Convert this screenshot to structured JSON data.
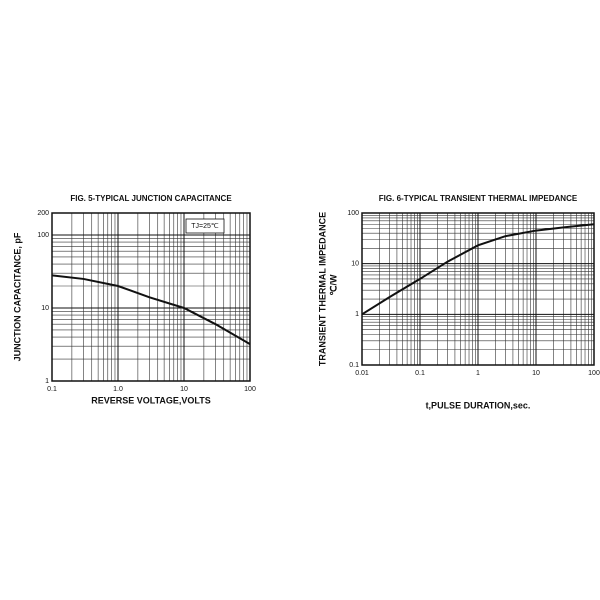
{
  "chart_data": [
    {
      "type": "line",
      "title": "FIG. 5-TYPICAL JUNCTION CAPACITANCE",
      "x_label": "REVERSE VOLTAGE,VOLTS",
      "y_label": [
        "JUNCTION CAPACITANCE, pF"
      ],
      "annotation": "TJ=25℃",
      "log_x": true,
      "log_y": true,
      "grid": true,
      "minor_grid": true,
      "xlim": [
        0.1,
        100
      ],
      "ylim": [
        1,
        200
      ],
      "xticks": [
        0.1,
        {
          "value": 1,
          "label": "1.0"
        },
        10,
        100
      ],
      "yticks": [
        1,
        10,
        100,
        200
      ],
      "x": [
        0.1,
        0.3,
        1,
        3,
        10,
        30,
        100
      ],
      "series": [
        {
          "color": "#111111",
          "values": [
            28,
            25,
            20,
            14,
            10,
            6,
            3.2
          ]
        }
      ]
    },
    {
      "type": "line",
      "title": "FIG. 6-TYPICAL TRANSIENT THERMAL IMPEDANCE",
      "x_label": "t,PULSE DURATION,sec.",
      "y_label": [
        "TRANSIENT THERMAL IMPEDANCE",
        "℃/W"
      ],
      "log_x": true,
      "log_y": true,
      "grid": true,
      "minor_grid": true,
      "xlim": [
        0.01,
        100
      ],
      "ylim": [
        0.1,
        100
      ],
      "xticks": [
        0.01,
        0.1,
        1,
        10,
        100
      ],
      "yticks": [
        0.1,
        1,
        10,
        100
      ],
      "x": [
        0.01,
        0.03,
        0.1,
        0.3,
        1,
        3,
        10,
        30,
        100
      ],
      "series": [
        {
          "color": "#111111",
          "values": [
            1,
            2.2,
            5,
            11,
            23,
            35,
            45,
            52,
            60
          ]
        }
      ]
    }
  ]
}
